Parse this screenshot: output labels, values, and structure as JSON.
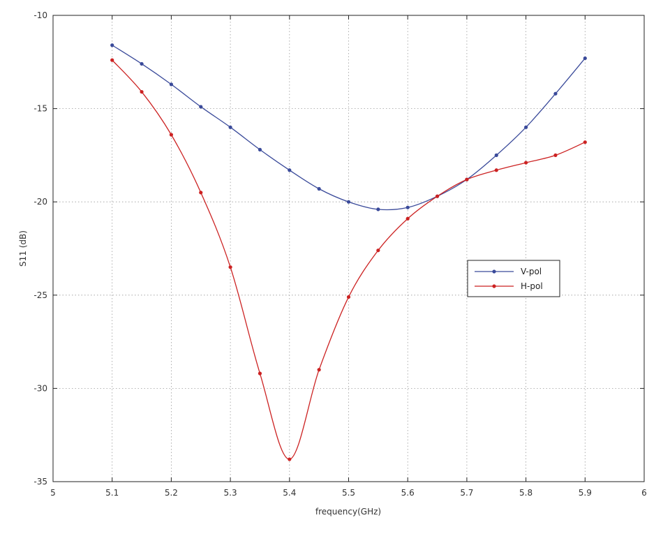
{
  "chart_data": {
    "type": "line",
    "xlabel": "frequency(GHz)",
    "ylabel": "S11 (dB)",
    "xlim": [
      5,
      6
    ],
    "ylim": [
      -35,
      -10
    ],
    "xticks": [
      5,
      5.1,
      5.2,
      5.3,
      5.4,
      5.5,
      5.6,
      5.7,
      5.8,
      5.9,
      6
    ],
    "xtick_labels": [
      "5",
      "5.1",
      "5.2",
      "5.3",
      "5.4",
      "5.5",
      "5.6",
      "5.7",
      "5.8",
      "5.9",
      "6"
    ],
    "yticks": [
      -35,
      -30,
      -25,
      -20,
      -15,
      -10
    ],
    "ytick_labels": [
      "-35",
      "-30",
      "-25",
      "-20",
      "-15",
      "-10"
    ],
    "grid": true,
    "grid_style": "dotted",
    "legend_position": "right, vertically centered",
    "x": [
      5.1,
      5.15,
      5.2,
      5.25,
      5.3,
      5.35,
      5.4,
      5.45,
      5.5,
      5.55,
      5.6,
      5.65,
      5.7,
      5.75,
      5.8,
      5.85,
      5.9
    ],
    "series": [
      {
        "name": "V-pol",
        "color": "#3a4a9a",
        "values": [
          -11.6,
          -12.6,
          -13.7,
          -14.9,
          -16.0,
          -17.2,
          -18.3,
          -19.3,
          -20.0,
          -20.4,
          -20.3,
          -19.7,
          -18.8,
          -17.5,
          -16.0,
          -14.2,
          -12.3
        ]
      },
      {
        "name": "H-pol",
        "color": "#cc2222",
        "values": [
          -12.4,
          -14.1,
          -16.4,
          -19.5,
          -23.5,
          -29.2,
          -33.8,
          -29.0,
          -25.1,
          -22.6,
          -20.9,
          -19.7,
          -18.8,
          -18.3,
          -17.9,
          -17.5,
          -16.8
        ]
      }
    ]
  }
}
